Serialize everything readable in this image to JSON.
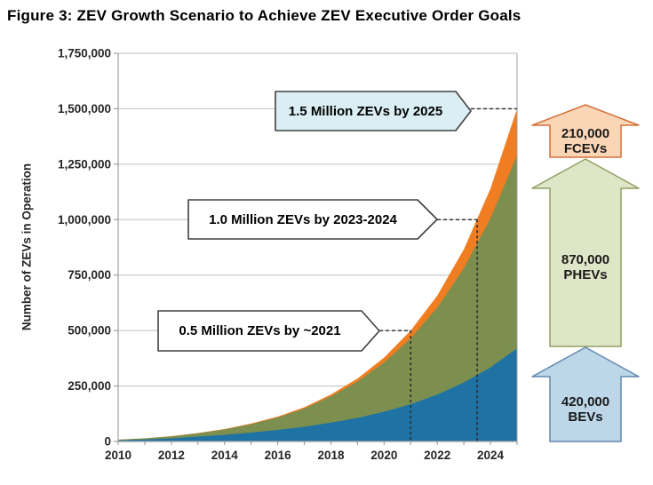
{
  "title": "Figure 3: ZEV Growth Scenario to Achieve ZEV Executive Order Goals",
  "chart_data": {
    "type": "area",
    "stacked": true,
    "title": "Figure 3: ZEV Growth Scenario to Achieve ZEV Executive Order Goals",
    "xlabel": "",
    "ylabel": "Number of ZEVs in Operation",
    "xlim": [
      2010,
      2025
    ],
    "ylim": [
      0,
      1750000
    ],
    "grid": true,
    "legend": "none",
    "x": [
      2010,
      2011,
      2012,
      2013,
      2014,
      2015,
      2016,
      2017,
      2018,
      2019,
      2020,
      2021,
      2022,
      2023,
      2024,
      2025
    ],
    "series": [
      {
        "name": "BEVs",
        "color": "#1F73A4",
        "values": [
          5000,
          9000,
          14000,
          22000,
          30000,
          40000,
          52000,
          66000,
          85000,
          106000,
          134000,
          168000,
          211000,
          266000,
          334000,
          420000
        ]
      },
      {
        "name": "PHEVs",
        "color": "#7C8F4F",
        "values": [
          3000,
          5000,
          9000,
          15000,
          24000,
          38000,
          56000,
          82000,
          118000,
          164000,
          222000,
          297000,
          393000,
          515000,
          672000,
          870000
        ]
      },
      {
        "name": "FCEVs",
        "color": "#F07D21",
        "values": [
          0,
          0,
          1000,
          1000,
          2000,
          3000,
          4000,
          6000,
          9000,
          14000,
          22000,
          35000,
          54000,
          85000,
          134000,
          210000
        ]
      }
    ],
    "ytick_labels": [
      "0",
      "250,000",
      "500,000",
      "750,000",
      "1,000,000",
      "1,250,000",
      "1,500,000",
      "1,750,000"
    ],
    "xtick_labels": [
      "2010",
      "2012",
      "2014",
      "2016",
      "2018",
      "2020",
      "2022",
      "2024"
    ],
    "annotations": [
      {
        "label": "1.5 Million ZEVs by 2025",
        "year": 2025,
        "value": 1500000
      },
      {
        "label": "1.0 Million ZEVs by 2023-2024",
        "year": 2023.5,
        "value": 1000000
      },
      {
        "label": "0.5 Million ZEVs by ~2021",
        "year": 2021,
        "value": 500000
      }
    ]
  },
  "side_arrows": [
    {
      "value": "210,000",
      "label": "FCEVs",
      "fill": "#FBD6B6",
      "stroke": "#D4703B"
    },
    {
      "value": "870,000",
      "label": "PHEVs",
      "fill": "#DFE5C7",
      "stroke": "#90A062"
    },
    {
      "value": "420,000",
      "label": "BEVs",
      "fill": "#BDD7E9",
      "stroke": "#6389AF"
    }
  ],
  "colors": {
    "bev_area": "#1F73A4",
    "phev_area": "#7C8F4F",
    "fcev_area": "#F07D21",
    "gridline": "#BFBFBF",
    "axis": "#A0A0A0",
    "guide_dash": "#2b2b2b",
    "callout_border": "#404040",
    "callout_fill": "#FFFFFF",
    "callout_fill_highlight": "#DAEEF3"
  }
}
